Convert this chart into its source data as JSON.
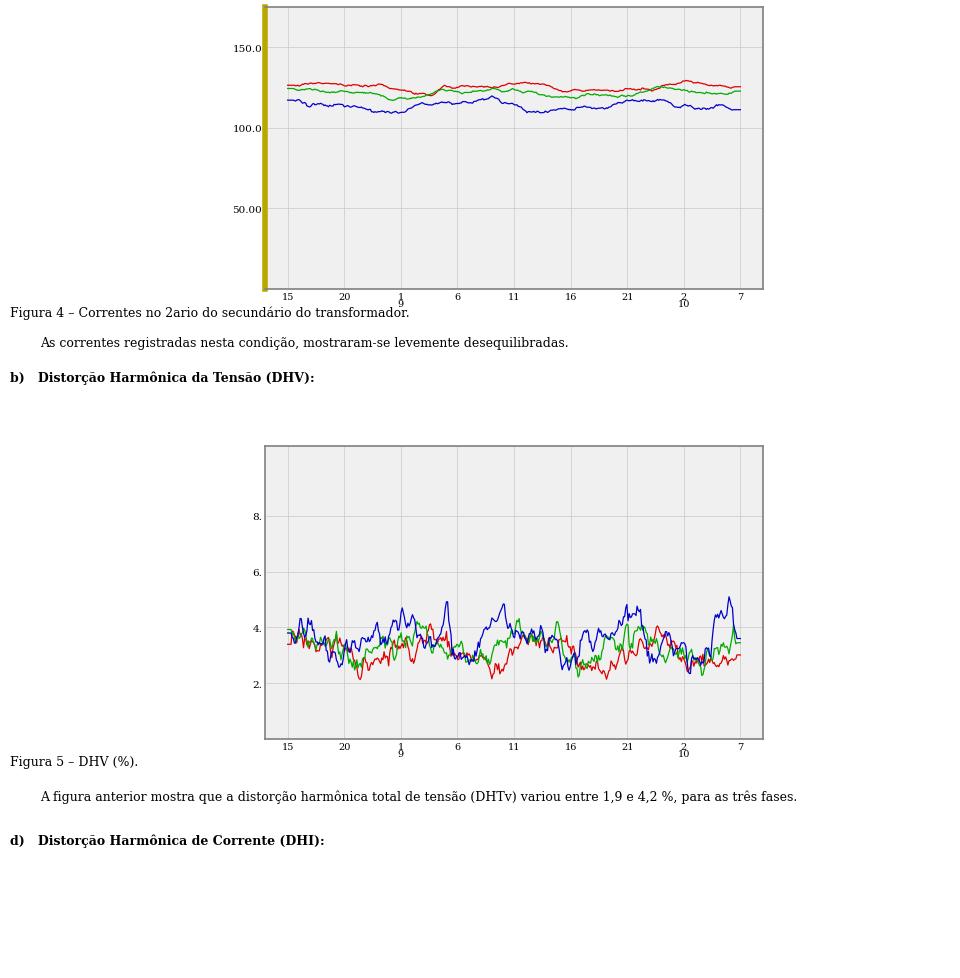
{
  "fig_width": 9.6,
  "fig_height": 9.79,
  "bg_color": "#ffffff",
  "text_fig4": "Figura 4 – Correntes no 2ario do secundário do transformador.",
  "text_para1": "As correntes registradas nesta condição, mostraram-se levemente desequilibradas.",
  "text_b_label": "b)   Distorção Harmônica da Tensão (DHV):",
  "text_fig5": "Figura 5 – DHV (%).",
  "text_para2": "A figura anterior mostra que a distorção harmônica total de tensão (DHTv) variou entre 1,9 e 4,2 %, para as três fases.",
  "text_d_label": "d)   Distorção Harmônica de Corrente (DHI):",
  "chart1": {
    "yticks": [
      50.0,
      100.0,
      150.0
    ],
    "ytick_labels": [
      "50.00",
      "100.0",
      "150.0"
    ],
    "ylim": [
      0,
      175
    ],
    "grid_color": "#c8c8c8",
    "border_outer_color": "#b8a800",
    "border_inner_color": "#808080",
    "line_colors": [
      "#dd0000",
      "#00aa00",
      "#0000cc"
    ],
    "line_bases": [
      125.0,
      121.5,
      113.5
    ],
    "line_amp": [
      2.0,
      2.0,
      2.5
    ],
    "bg_color": "#f0f0f0"
  },
  "chart2": {
    "yticks": [
      2.0,
      4.0,
      6.0,
      8.0
    ],
    "ytick_labels": [
      "2.",
      "4.",
      "6.",
      "8."
    ],
    "ylim": [
      0,
      10.5
    ],
    "grid_color": "#c8c8c8",
    "border_color": "#808080",
    "line_colors": [
      "#dd0000",
      "#00aa00",
      "#0000cc"
    ],
    "line_bases": [
      3.1,
      3.3,
      3.6
    ],
    "line_amp": [
      0.45,
      0.45,
      0.55
    ],
    "bg_color": "#f0f0f0"
  },
  "xtick_labels_top": [
    "15",
    "20",
    "1\n9",
    "6",
    "11",
    "16",
    "21",
    "2\n10",
    "7"
  ],
  "xtick_labels_bot": [
    "15",
    "20",
    "1\n9",
    "6",
    "11",
    "16",
    "21",
    "2\n10",
    "7"
  ]
}
